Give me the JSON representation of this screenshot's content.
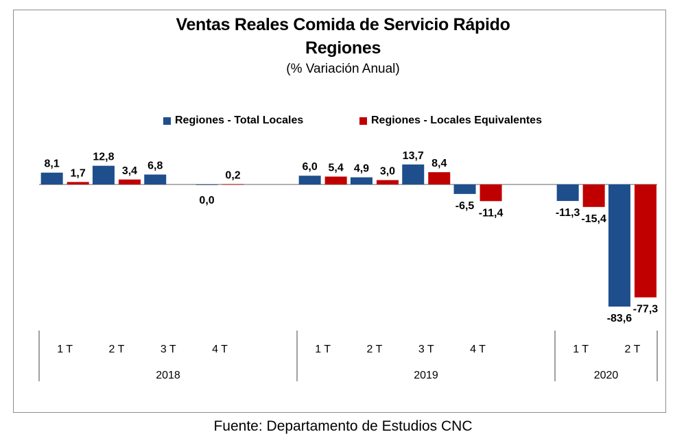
{
  "title_line1": "Ventas Reales Comida de Servicio Rápido",
  "title_line2": "Regiones",
  "subtitle": "(% Variación Anual)",
  "source": "Fuente: Departamento de Estudios CNC",
  "colors": {
    "total": "#1f4e8c",
    "equiv": "#c00000",
    "axis": "#808080"
  },
  "chart_data": {
    "type": "bar",
    "title": "Ventas Reales Comida de Servicio Rápido Regiones",
    "subtitle": "(% Variación Anual)",
    "legend_position": "top",
    "grid": false,
    "categories": [
      "1 T",
      "2 T",
      "3 T",
      "4 T",
      "1 T",
      "2 T",
      "3 T",
      "4 T",
      "1 T",
      "2 T"
    ],
    "groups": [
      {
        "label": "2018",
        "count": 4
      },
      {
        "label": "2019",
        "count": 4
      },
      {
        "label": "2020",
        "count": 2
      }
    ],
    "series": [
      {
        "name": "Regiones - Total Locales",
        "values": [
          8.1,
          12.8,
          6.8,
          0.0,
          6.0,
          4.9,
          13.7,
          -6.5,
          -11.3,
          -83.6
        ],
        "labels": [
          "8,1",
          "12,8",
          "6,8",
          "0,0",
          "6,0",
          "4,9",
          "13,7",
          "-6,5",
          "-11,3",
          "-83,6"
        ]
      },
      {
        "name": "Regiones - Locales Equivalentes",
        "values": [
          1.7,
          3.4,
          null,
          0.2,
          5.4,
          3.0,
          8.4,
          -11.4,
          -15.4,
          -77.3
        ],
        "labels": [
          "1,7",
          "3,4",
          "",
          "0,2",
          "5,4",
          "3,0",
          "8,4",
          "-11,4",
          "-15,4",
          "-77,3"
        ]
      }
    ]
  }
}
